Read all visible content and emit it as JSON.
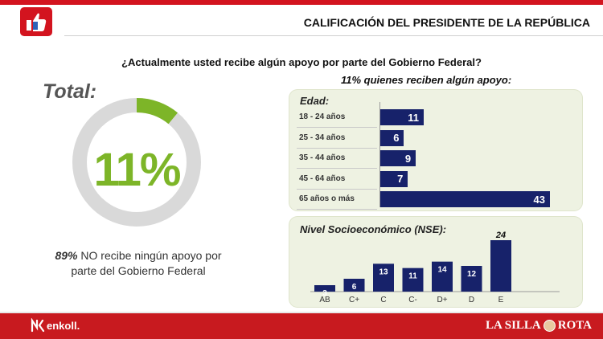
{
  "header": {
    "title": "CALIFICACIÓN DEL PRESIDENTE DE LA REPÚBLICA",
    "logo_icon": "thumbs-up-icon"
  },
  "question": "¿Actualmente usted recibe algún apoyo por parte del Gobierno Federal?",
  "subquestion": "11% quienes reciben algún apoyo:",
  "total": {
    "label": "Total:",
    "value_text": "11%",
    "note_strong": "89%",
    "note_rest": " NO recibe ningún apoyo por parte del Gobierno Federal"
  },
  "footer": {
    "left_brand": "enkoll.",
    "right_brand_1": "LA SILLA",
    "right_brand_2": "ROTA"
  },
  "colors": {
    "accent_red": "#d3141f",
    "bar_navy": "#17226a",
    "donut_green": "#7db528",
    "donut_gray": "#d9d9d9",
    "panel_bg": "#eef2e2"
  },
  "chart_data": [
    {
      "type": "pie",
      "title": "Total:",
      "categories": [
        "Sí recibe",
        "No recibe"
      ],
      "values": [
        11,
        89
      ],
      "display": "donut"
    },
    {
      "type": "bar",
      "orientation": "horizontal",
      "title": "Edad:",
      "categories": [
        "18 - 24 años",
        "25 - 34 años",
        "35 - 44 años",
        "45 - 64 años",
        "65 años o más"
      ],
      "values": [
        11,
        6,
        9,
        7,
        43
      ],
      "xlim": [
        0,
        43
      ]
    },
    {
      "type": "bar",
      "orientation": "vertical",
      "title": "Nivel Socioeconómico (NSE):",
      "categories": [
        "AB",
        "C+",
        "C",
        "C-",
        "D+",
        "D",
        "E"
      ],
      "values": [
        3,
        6,
        13,
        11,
        14,
        12,
        24
      ],
      "ylim": [
        0,
        24
      ]
    }
  ]
}
